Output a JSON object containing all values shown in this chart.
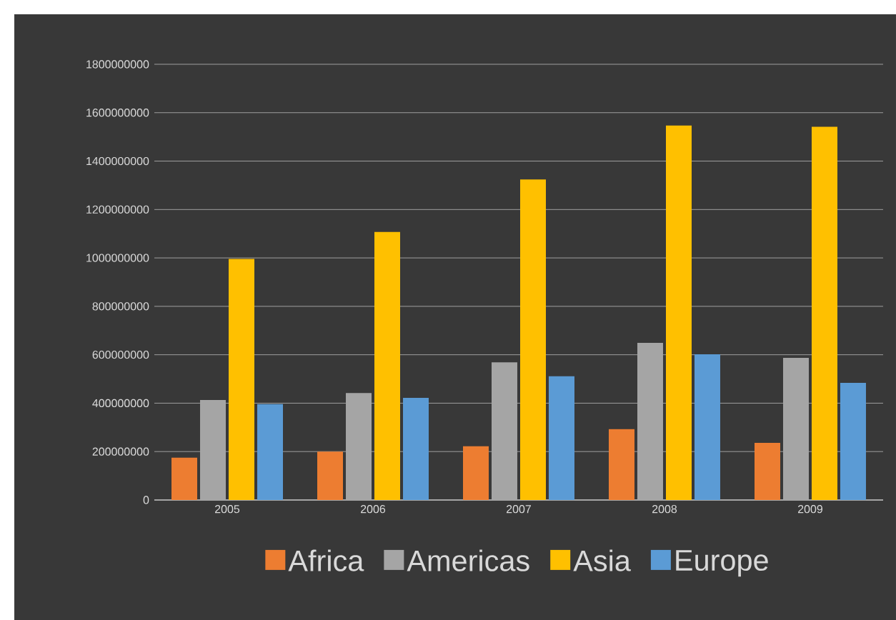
{
  "chart_data": {
    "type": "bar",
    "categories": [
      "2005",
      "2006",
      "2007",
      "2008",
      "2009"
    ],
    "series": [
      {
        "name": "Africa",
        "color": "#ed7d31",
        "values": [
          175000000,
          200000000,
          222000000,
          293000000,
          236000000
        ]
      },
      {
        "name": "Americas",
        "color": "#a5a5a5",
        "values": [
          413000000,
          442000000,
          569000000,
          649000000,
          587000000
        ]
      },
      {
        "name": "Asia",
        "color": "#ffc000",
        "values": [
          996000000,
          1107000000,
          1324000000,
          1547000000,
          1542000000
        ]
      },
      {
        "name": "Europe",
        "color": "#5b9bd5",
        "values": [
          396000000,
          422000000,
          511000000,
          602000000,
          484000000
        ]
      }
    ],
    "ylim": [
      0,
      1800000000
    ],
    "yticks": [
      0,
      200000000,
      400000000,
      600000000,
      800000000,
      1000000000,
      1200000000,
      1400000000,
      1600000000,
      1800000000
    ],
    "grid": "y",
    "legend": "bottom"
  }
}
